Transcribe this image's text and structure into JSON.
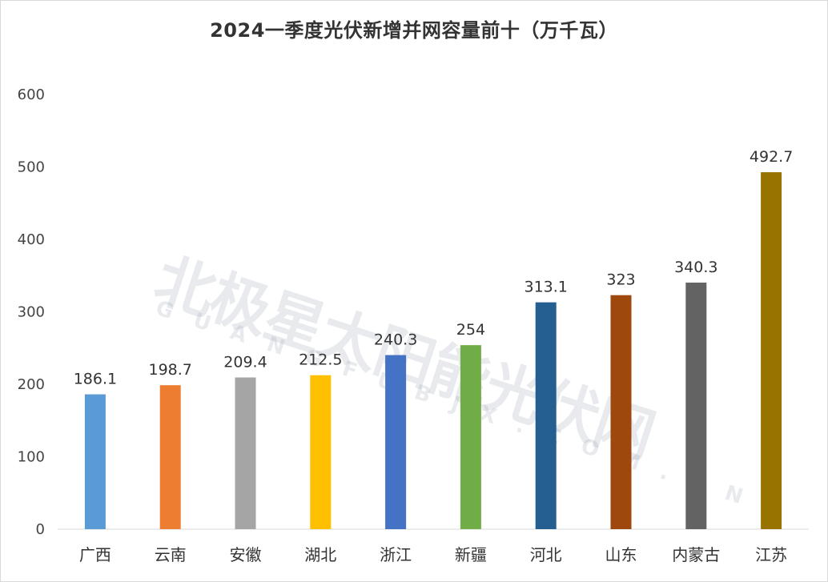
{
  "chart_data": {
    "type": "bar",
    "title": "2024一季度光伏新增并网容量前十（万千瓦）",
    "categories": [
      "广西",
      "云南",
      "安徽",
      "湖北",
      "浙江",
      "新疆",
      "河北",
      "山东",
      "内蒙古",
      "江苏"
    ],
    "values": [
      186.1,
      198.7,
      209.4,
      212.5,
      240.3,
      254,
      313.1,
      323,
      340.3,
      492.7
    ],
    "data_labels": [
      "186.1",
      "198.7",
      "209.4",
      "212.5",
      "240.3",
      "254",
      "313.1",
      "323",
      "340.3",
      "492.7"
    ],
    "colors": [
      "#5B9BD5",
      "#ED7D31",
      "#A5A5A5",
      "#FFC000",
      "#4472C4",
      "#70AD47",
      "#255E91",
      "#9E480E",
      "#636363",
      "#997300"
    ],
    "xlabel": "",
    "ylabel": "",
    "ylim": [
      0,
      600
    ],
    "yticks": [
      "0",
      "100",
      "200",
      "300",
      "400",
      "500",
      "600"
    ],
    "grid": false,
    "legend": "none"
  },
  "watermark": {
    "text": "北极星太阳能光伏网",
    "subtext": "GUANGFUBJX.COM.CN"
  }
}
